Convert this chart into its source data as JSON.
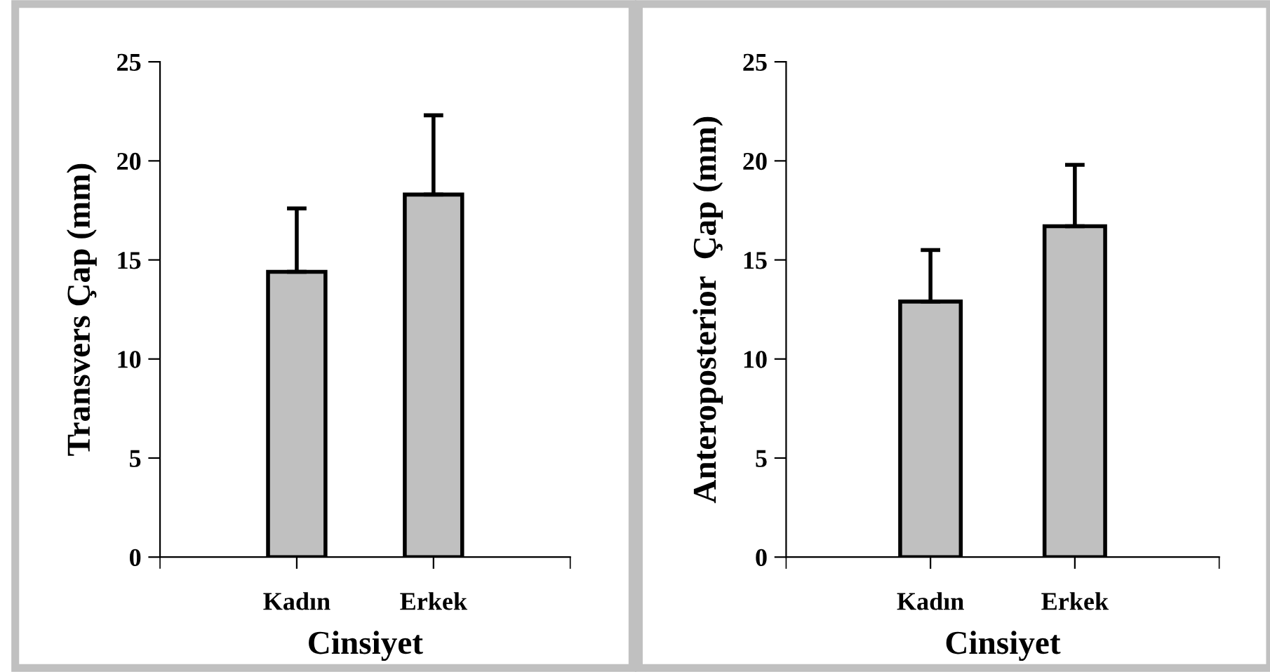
{
  "chart_data": [
    {
      "type": "bar",
      "xlabel": "Cinsiyet",
      "ylabel": "Transvers Çap (mm)",
      "categories": [
        "Kadın",
        "Erkek"
      ],
      "values": [
        14.4,
        18.3
      ],
      "errors": [
        [
          14.4,
          17.6
        ],
        [
          18.3,
          22.3
        ]
      ],
      "color": "#c0c0c0",
      "ylim": [
        0,
        25
      ],
      "yticks": [
        0,
        5,
        10,
        15,
        20,
        25
      ],
      "grid": false,
      "legend": false
    },
    {
      "type": "bar",
      "xlabel": "Cinsiyet",
      "ylabel": "Anteroposterior  Çap (mm)",
      "categories": [
        "Kadın",
        "Erkek"
      ],
      "values": [
        12.9,
        16.7
      ],
      "errors": [
        [
          12.9,
          15.5
        ],
        [
          16.7,
          19.8
        ]
      ],
      "color": "#c0c0c0",
      "ylim": [
        0,
        25
      ],
      "yticks": [
        0,
        5,
        10,
        15,
        20,
        25
      ],
      "grid": false,
      "legend": false
    }
  ]
}
